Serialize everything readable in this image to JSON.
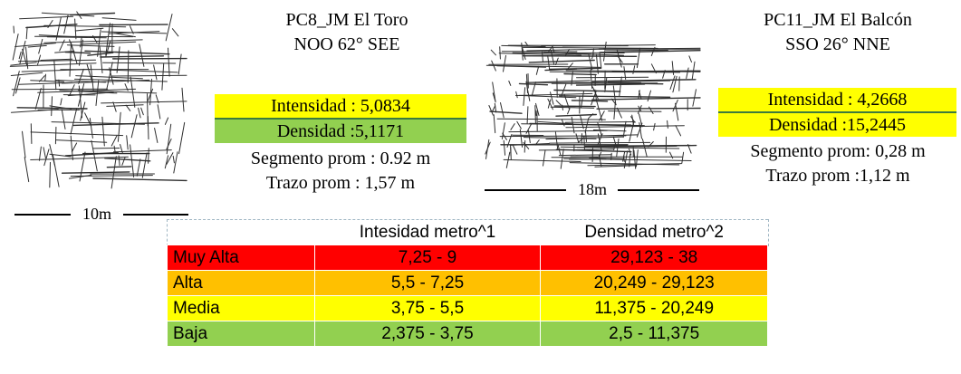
{
  "colors": {
    "yellow": "#ffff00",
    "green": "#92d050",
    "red": "#ff0000",
    "orange": "#ffc000",
    "line": "#2e2e2e"
  },
  "left_panel": {
    "title_line1": "PC8_JM El Toro",
    "title_line2": "NOO 62° SEE",
    "intensidad": "Intensidad : 5,0834",
    "densidad": "Densidad :5,1171",
    "segmento": "Segmento prom : 0.92 m",
    "trazo": "Trazo prom : 1,57 m",
    "scale": "10m",
    "image_icon": "fracture-map-icon"
  },
  "middle_panel": {
    "scale": "18m",
    "image_icon": "fracture-map-icon"
  },
  "right_panel": {
    "title_line1": "PC11_JM El Balcón",
    "title_line2": "SSO 26° NNE",
    "intensidad": "Intensidad : 4,2668",
    "densidad": "Densidad :15,2445",
    "segmento": "Segmento prom: 0,28 m",
    "trazo": "Trazo prom :1,12 m"
  },
  "legend": {
    "headers": [
      "",
      "Intesidad metro^1",
      "Densidad  metro^2"
    ],
    "rows": [
      {
        "label": "Muy Alta",
        "intensidad": "7,25 - 9",
        "densidad": "29,123 - 38",
        "color": "#ff0000"
      },
      {
        "label": "Alta",
        "intensidad": "5,5 - 7,25",
        "densidad": "20,249 - 29,123",
        "color": "#ffc000"
      },
      {
        "label": "Media",
        "intensidad": "3,75 - 5,5",
        "densidad": "11,375 - 20,249",
        "color": "#ffff00"
      },
      {
        "label": "Baja",
        "intensidad": "2,375 - 3,75",
        "densidad": "2,5 - 11,375",
        "color": "#92d050"
      }
    ]
  }
}
